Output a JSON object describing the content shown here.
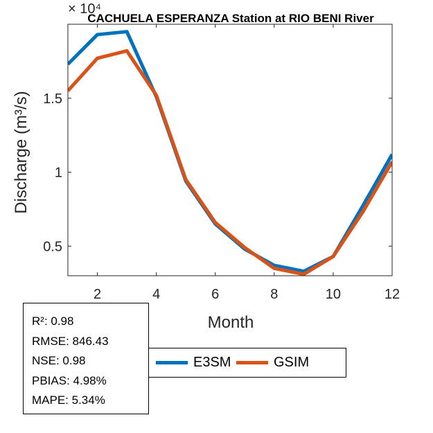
{
  "chart_data": {
    "type": "line",
    "title": "CACHUELA ESPERANZA  Station at  RIO BENI  River",
    "xlabel": "Month",
    "ylabel": "Discharge (m³/s)",
    "y_exponent": "× 10⁴",
    "x": [
      1,
      2,
      3,
      4,
      5,
      6,
      7,
      8,
      9,
      10,
      11,
      12
    ],
    "xlim": [
      1,
      12
    ],
    "ylim": [
      0.3,
      2.0
    ],
    "x_ticks": [
      2,
      4,
      6,
      8,
      10,
      12
    ],
    "y_ticks": [
      0.5,
      1,
      1.5
    ],
    "grid": false,
    "legend_placement": "bottom",
    "series": [
      {
        "name": "E3SM",
        "color": "#0072BD",
        "values": [
          1.73,
          1.93,
          1.95,
          1.51,
          0.94,
          0.65,
          0.48,
          0.37,
          0.33,
          0.43,
          0.77,
          1.12
        ]
      },
      {
        "name": "GSIM",
        "color": "#D95319",
        "values": [
          1.55,
          1.77,
          1.82,
          1.52,
          0.95,
          0.66,
          0.49,
          0.35,
          0.31,
          0.43,
          0.73,
          1.07
        ]
      }
    ]
  },
  "stats": {
    "r2": "R²: 0.98",
    "rmse": "RMSE: 846.43",
    "nse": "NSE: 0.98",
    "pbias": "PBIAS: 4.98%",
    "mape": "MAPE: 5.34%"
  }
}
